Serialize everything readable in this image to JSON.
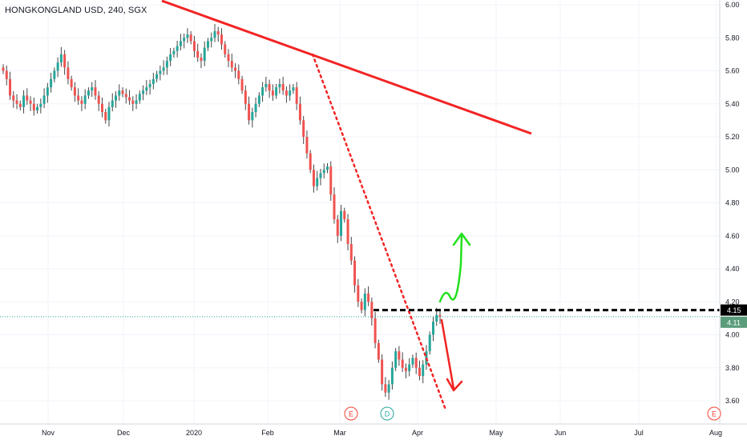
{
  "chart_data": {
    "type": "candlestick",
    "title": "HONGKONGLAND USD, 240, SGX",
    "ylim": [
      3.5,
      6.02
    ],
    "y_ticks": [
      "6.00",
      "5.80",
      "5.60",
      "5.40",
      "5.20",
      "5.00",
      "4.80",
      "4.60",
      "4.40",
      "4.20",
      "4.00",
      "3.80",
      "3.60"
    ],
    "x_ticks": [
      "Nov",
      "Dec",
      "2020",
      "Feb",
      "Mar",
      "Apr",
      "May",
      "Jun",
      "Jul",
      "Aug"
    ],
    "last_price": "4.11",
    "level_price": "4.15",
    "level_price_value": 4.15,
    "last_price_value": 4.11,
    "closes": [
      5.6,
      5.55,
      5.45,
      5.42,
      5.4,
      5.38,
      5.45,
      5.42,
      5.4,
      5.36,
      5.38,
      5.4,
      5.45,
      5.5,
      5.55,
      5.6,
      5.65,
      5.7,
      5.62,
      5.55,
      5.5,
      5.45,
      5.42,
      5.4,
      5.45,
      5.48,
      5.5,
      5.45,
      5.4,
      5.35,
      5.3,
      5.38,
      5.42,
      5.45,
      5.48,
      5.46,
      5.44,
      5.42,
      5.4,
      5.42,
      5.46,
      5.48,
      5.5,
      5.52,
      5.55,
      5.58,
      5.6,
      5.62,
      5.66,
      5.7,
      5.72,
      5.75,
      5.78,
      5.8,
      5.82,
      5.78,
      5.72,
      5.68,
      5.66,
      5.74,
      5.78,
      5.8,
      5.84,
      5.82,
      5.76,
      5.7,
      5.66,
      5.62,
      5.6,
      5.55,
      5.48,
      5.4,
      5.3,
      5.35,
      5.4,
      5.45,
      5.5,
      5.52,
      5.48,
      5.45,
      5.5,
      5.52,
      5.48,
      5.45,
      5.48,
      5.5,
      5.4,
      5.3,
      5.2,
      5.1,
      5.0,
      4.9,
      4.95,
      4.98,
      5.0,
      5.02,
      4.85,
      4.7,
      4.6,
      4.75,
      4.7,
      4.55,
      4.45,
      4.3,
      4.2,
      4.15,
      4.25,
      4.2,
      4.1,
      3.95,
      3.85,
      3.7,
      3.65,
      3.7,
      3.8,
      3.9,
      3.85,
      3.8,
      3.78,
      3.82,
      3.86,
      3.8,
      3.75,
      3.82,
      3.9,
      4.0,
      4.08,
      4.12,
      4.11
    ],
    "annotations": {
      "resistance_line": {
        "from": [
          "2019-10-15",
          6.03
        ],
        "to": [
          "2020-05-20",
          5.22
        ],
        "color": "#f22424"
      },
      "dotted_trend": {
        "from": [
          "2020-02-20",
          5.7
        ],
        "to": [
          "2020-04-12",
          3.55
        ],
        "color": "#f22424"
      },
      "level_line": {
        "value": 4.15,
        "color": "#000000"
      },
      "up_arrow": {
        "color": "#22e01e",
        "target": 4.62
      },
      "down_arrow": {
        "color": "#f22424",
        "target": 3.65
      }
    }
  },
  "events": {
    "e1": "E",
    "d1": "D",
    "e2": "E"
  },
  "colors": {
    "up": "#26a69a",
    "down": "#ef5350",
    "grid": "#f0f3fa",
    "axis": "#d1d4dc",
    "trend": "#f22424",
    "bull_arrow": "#22e01e",
    "last_badge": "#5b9c7b"
  }
}
